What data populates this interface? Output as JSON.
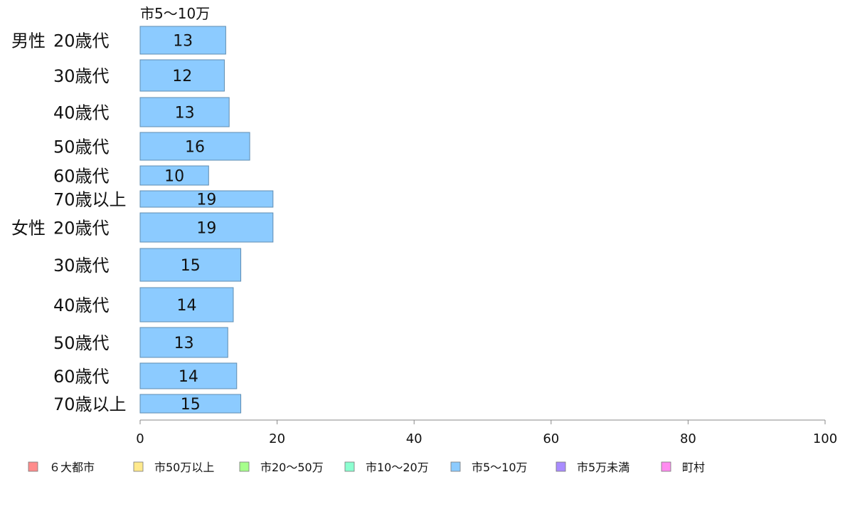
{
  "chart_data": {
    "type": "bar",
    "orientation": "horizontal",
    "series_title": "市5〜10万",
    "groups": [
      "男性",
      "女性"
    ],
    "categories": [
      "20歳代",
      "30歳代",
      "40歳代",
      "50歳代",
      "60歳代",
      "70歳以上",
      "20歳代",
      "30歳代",
      "40歳代",
      "50歳代",
      "60歳代",
      "70歳以上"
    ],
    "category_group": [
      0,
      0,
      0,
      0,
      0,
      0,
      1,
      1,
      1,
      1,
      1,
      1
    ],
    "series": [
      {
        "name": "市5〜10万",
        "values": [
          12.5,
          12.3,
          13.0,
          16.0,
          10.0,
          19.4,
          19.4,
          14.7,
          13.6,
          12.8,
          14.1,
          14.7
        ],
        "labels": [
          "13",
          "12",
          "13",
          "16",
          "10",
          "19",
          "19",
          "15",
          "14",
          "13",
          "14",
          "15"
        ],
        "color": "#8ccbff"
      }
    ],
    "xlim": [
      0,
      100
    ],
    "xticks": [
      0,
      20,
      40,
      60,
      80,
      100
    ],
    "xlabel": "",
    "ylabel": "",
    "legend": {
      "placement": "bottom",
      "items": [
        {
          "label": "６大都市",
          "color": "#ff8c8c"
        },
        {
          "label": "市50万以上",
          "color": "#ffe98c"
        },
        {
          "label": "市20〜50万",
          "color": "#a6ff8c"
        },
        {
          "label": "市10〜20万",
          "color": "#8cffd0"
        },
        {
          "label": "市5〜10万",
          "color": "#8ccbff"
        },
        {
          "label": "市5万未満",
          "color": "#a98cff"
        },
        {
          "label": "町村",
          "color": "#ff8cf0"
        }
      ]
    },
    "bar_border_color": "#5f8cb0",
    "axis_color": "#888888"
  }
}
